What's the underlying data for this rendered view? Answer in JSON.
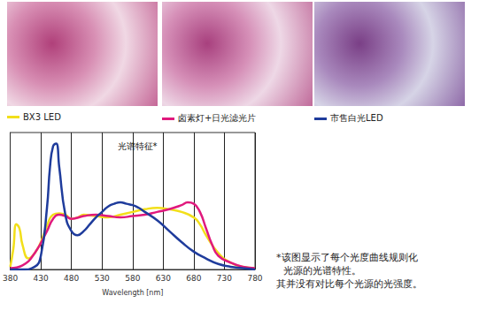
{
  "chart_data": {
    "type": "line",
    "title": "光谱特征*",
    "xlabel": "Wavelength [nm]",
    "xlim": [
      380,
      780
    ],
    "xticks": [
      380,
      430,
      480,
      530,
      580,
      630,
      680,
      730,
      780
    ],
    "ylim": [
      0,
      1
    ],
    "yticks": [],
    "tick_labels": "x",
    "grid": true,
    "series": [
      {
        "name": "BX3 LED",
        "color": "#f2df1a",
        "x": [
          380,
          385,
          390,
          395,
          400,
          410,
          420,
          430,
          440,
          450,
          460,
          470,
          480,
          490,
          500,
          520,
          540,
          560,
          580,
          600,
          620,
          640,
          660,
          680,
          690,
          700,
          720,
          740,
          760,
          780
        ],
        "values": [
          0.02,
          0.15,
          0.33,
          0.3,
          0.18,
          0.08,
          0.12,
          0.2,
          0.32,
          0.4,
          0.41,
          0.4,
          0.37,
          0.38,
          0.4,
          0.39,
          0.38,
          0.4,
          0.42,
          0.44,
          0.45,
          0.44,
          0.42,
          0.38,
          0.33,
          0.25,
          0.12,
          0.05,
          0.02,
          0.01
        ]
      },
      {
        "name": "卤素灯+日光滤光片",
        "color": "#e0197d",
        "x": [
          380,
          400,
          420,
          440,
          450,
          460,
          470,
          480,
          500,
          520,
          540,
          560,
          580,
          600,
          620,
          640,
          660,
          670,
          680,
          690,
          700,
          710,
          720,
          740,
          760,
          780
        ],
        "values": [
          0.01,
          0.03,
          0.12,
          0.28,
          0.37,
          0.4,
          0.39,
          0.37,
          0.39,
          0.4,
          0.39,
          0.38,
          0.39,
          0.4,
          0.42,
          0.44,
          0.47,
          0.49,
          0.48,
          0.42,
          0.3,
          0.18,
          0.1,
          0.05,
          0.02,
          0.01
        ]
      },
      {
        "name": "市售白光LED",
        "color": "#1f3c9c",
        "x": [
          380,
          400,
          420,
          430,
          440,
          445,
          450,
          455,
          460,
          470,
          480,
          490,
          500,
          510,
          520,
          530,
          540,
          550,
          560,
          570,
          580,
          590,
          600,
          620,
          640,
          660,
          680,
          700,
          720,
          740,
          760,
          780
        ],
        "values": [
          0,
          0,
          0.02,
          0.1,
          0.45,
          0.75,
          0.9,
          0.92,
          0.75,
          0.4,
          0.28,
          0.25,
          0.28,
          0.33,
          0.38,
          0.42,
          0.46,
          0.48,
          0.49,
          0.48,
          0.47,
          0.45,
          0.42,
          0.36,
          0.28,
          0.2,
          0.13,
          0.08,
          0.04,
          0.02,
          0.01,
          0
        ]
      }
    ],
    "annotations": [
      "*该图显示了每个光度曲线规则化",
      "光源的光谱特性。",
      "其并没有对比每个光源的光强度。"
    ]
  }
}
